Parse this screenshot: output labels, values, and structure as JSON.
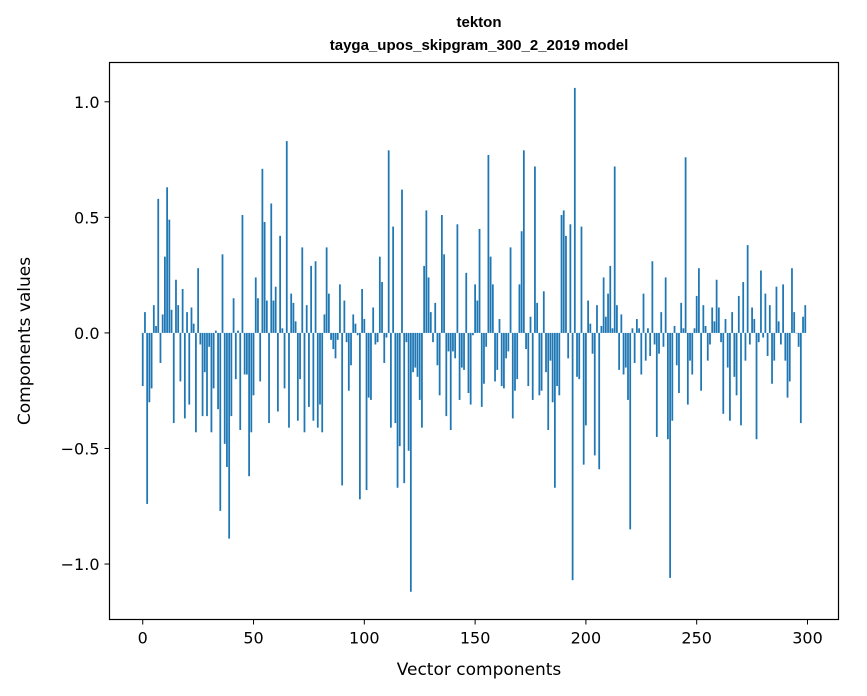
{
  "chart_data": {
    "type": "bar",
    "title": "tekton",
    "subtitle": "tayga_upos_skipgram_300_2_2019 model",
    "xlabel": "Vector components",
    "ylabel": "Components values",
    "xlim": [
      -15,
      314
    ],
    "ylim": [
      -1.24,
      1.17
    ],
    "xticks": [
      0,
      50,
      100,
      150,
      200,
      250,
      300
    ],
    "yticks": [
      1.0,
      0.5,
      0.0,
      -0.5,
      -1.0
    ],
    "ytick_labels": [
      "1.0",
      "0.5",
      "0.0",
      "−0.5",
      "−1.0"
    ],
    "bar_color": "#1f77b4",
    "values": [
      -0.23,
      0.09,
      -0.74,
      -0.3,
      -0.24,
      0.12,
      0.03,
      0.58,
      -0.13,
      0.08,
      0.33,
      0.63,
      0.49,
      0.1,
      -0.39,
      0.23,
      0.12,
      -0.21,
      0.19,
      -0.37,
      0.09,
      -0.31,
      0.11,
      0.04,
      -0.43,
      0.28,
      -0.05,
      -0.36,
      -0.17,
      -0.36,
      -0.06,
      -0.43,
      -0.24,
      0.01,
      -0.33,
      -0.77,
      0.34,
      -0.48,
      -0.58,
      -0.89,
      -0.36,
      0.15,
      -0.2,
      0.01,
      -0.42,
      0.51,
      -0.18,
      -0.18,
      -0.62,
      -0.43,
      -0.27,
      0.24,
      0.15,
      -0.21,
      0.71,
      0.48,
      0.14,
      -0.39,
      0.56,
      0.14,
      0.2,
      -0.34,
      0.42,
      0.02,
      -0.24,
      0.83,
      -0.41,
      0.17,
      0.13,
      0.05,
      -0.38,
      -0.2,
      0.37,
      -0.43,
      0.12,
      -0.32,
      0.29,
      -0.38,
      0.31,
      -0.41,
      -0.31,
      -0.43,
      0.08,
      0.37,
      0.17,
      -0.03,
      -0.07,
      -0.11,
      -0.03,
      0.21,
      -0.66,
      0.14,
      -0.04,
      -0.25,
      -0.14,
      0.08,
      0.04,
      -0.01,
      -0.72,
      0.19,
      0.06,
      -0.68,
      -0.28,
      -0.29,
      0.11,
      -0.05,
      -0.04,
      0.33,
      0.22,
      -0.13,
      -0.02,
      0.79,
      -0.41,
      0.46,
      -0.39,
      -0.67,
      -0.49,
      0.62,
      -0.65,
      -0.04,
      -0.51,
      -1.12,
      -0.17,
      -0.15,
      -0.19,
      -0.29,
      -0.41,
      0.29,
      0.53,
      0.24,
      0.09,
      -0.04,
      0.13,
      -0.14,
      -0.27,
      0.51,
      0.34,
      -0.36,
      -0.08,
      -0.42,
      -0.08,
      -0.11,
      0.47,
      -0.29,
      -0.15,
      -0.16,
      0.26,
      -0.26,
      -0.31,
      -0.01,
      0.21,
      0.14,
      0.45,
      -0.32,
      -0.22,
      -0.06,
      0.77,
      0.33,
      0.21,
      -0.21,
      -0.16,
      0.06,
      -0.23,
      -0.24,
      -0.11,
      -0.08,
      0.37,
      -0.37,
      -0.25,
      -0.2,
      0.21,
      0.44,
      0.79,
      -0.07,
      -0.23,
      0.07,
      -0.29,
      0.72,
      0.13,
      -0.27,
      -0.25,
      0.18,
      -0.17,
      -0.42,
      -0.12,
      -0.3,
      -0.67,
      -0.23,
      -0.27,
      0.51,
      0.53,
      0.42,
      -0.11,
      0.47,
      -1.07,
      1.06,
      -0.19,
      -0.2,
      0.46,
      -0.57,
      -0.4,
      0.14,
      0.04,
      -0.09,
      -0.53,
      0.12,
      -0.59,
      0.03,
      0.24,
      0.07,
      0.17,
      0.29,
      0.02,
      0.72,
      0.12,
      -0.16,
      0.08,
      -0.18,
      -0.15,
      -0.29,
      -0.85,
      0.02,
      -0.13,
      0.06,
      0.02,
      -0.18,
      0.17,
      -0.12,
      0.02,
      -0.1,
      0.31,
      -0.05,
      -0.45,
      -0.09,
      0.09,
      -0.06,
      0.24,
      -0.46,
      -1.06,
      -0.38,
      0.03,
      -0.14,
      -0.26,
      0.13,
      0.02,
      0.76,
      -0.31,
      -0.12,
      -0.18,
      0.02,
      0.16,
      0.28,
      -0.25,
      0.12,
      0.03,
      -0.12,
      -0.05,
      0.11,
      0.05,
      0.23,
      0.11,
      -0.04,
      -0.35,
      0.06,
      -0.15,
      -0.38,
      0.09,
      -0.19,
      -0.27,
      0.16,
      -0.4,
      0.22,
      -0.12,
      0.38,
      -0.05,
      0.11,
      0.06,
      -0.46,
      -0.04,
      0.27,
      -0.02,
      0.17,
      -0.1,
      0.12,
      -0.22,
      -0.12,
      0.2,
      0.05,
      -0.05,
      0.21,
      -0.12,
      -0.28,
      -0.21,
      0.28,
      0.09,
      0.0,
      -0.06,
      -0.39,
      0.07,
      0.12
    ]
  }
}
